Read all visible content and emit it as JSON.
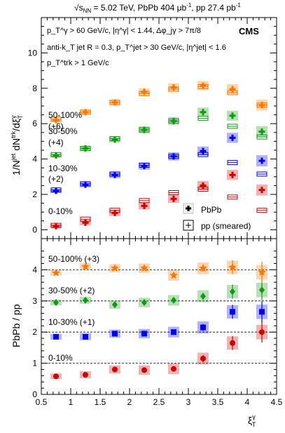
{
  "header": {
    "sqrt_s": "√s",
    "sqrt_s_sub": "NN",
    "rest": " = 5.02 TeV, PbPb 404 μb",
    "sup1": "-1",
    "mid": ", pp 27.4 pb",
    "sup2": "-1"
  },
  "cuts": {
    "line1": "p_T^γ > 60 GeV/c, |η^γ| < 1.44, Δφ_jγ > 7π/8",
    "line2": "anti-k_T jet R = 0.3, p_T^jet > 30 GeV/c, |η^jet| < 1.6",
    "line3": "p_T^trk > 1 GeV/c"
  },
  "cms_label": "CMS",
  "legend": {
    "pbpb": "PbPb",
    "pp": "pp (smeared)"
  },
  "colors": {
    "0-10%": "#cc0000",
    "10-30%": "#0000ee",
    "30-50%": "#119911",
    "50-100%": "#ff7700",
    "pp_box_alpha": 0.35
  },
  "chart_data": [
    {
      "type": "scatter",
      "title": "",
      "xlabel": "ξ_T^γ",
      "ylabel": "1/N^jet dN^trk/dξ_T^γ",
      "xlim": [
        0.5,
        4.5
      ],
      "ylim": [
        -0.5,
        12
      ],
      "yticks": [
        0,
        2,
        4,
        6,
        8,
        10
      ],
      "x": [
        0.75,
        1.25,
        1.75,
        2.25,
        2.75,
        3.25,
        3.75,
        4.25
      ],
      "series": [
        {
          "name": "0-10%",
          "label": "0-10%",
          "offset": "",
          "pbpb": [
            0.2,
            0.4,
            0.95,
            1.35,
            1.75,
            2.5,
            3.1,
            2.25
          ],
          "pp": [
            0.25,
            0.6,
            1.1,
            1.65,
            2.1,
            2.3,
            1.85,
            1.1
          ]
        },
        {
          "name": "10-30%",
          "label": "10-30%",
          "offset": "(+2)",
          "pbpb": [
            2.2,
            2.55,
            3.1,
            3.6,
            4.15,
            4.45,
            5.2,
            3.9
          ],
          "pp": [
            2.25,
            2.6,
            3.15,
            3.65,
            4.15,
            4.25,
            3.8,
            3.15
          ]
        },
        {
          "name": "30-50%",
          "label": "30-50%",
          "offset": "(+4)",
          "pbpb": [
            4.2,
            4.6,
            5.1,
            5.65,
            6.15,
            6.65,
            6.45,
            5.55
          ],
          "pp": [
            4.25,
            4.6,
            5.15,
            5.65,
            6.15,
            6.3,
            5.85,
            5.25
          ]
        },
        {
          "name": "50-100%",
          "label": "50-100%",
          "offset": "(+6)",
          "pbpb": [
            6.2,
            6.65,
            7.2,
            7.8,
            8.05,
            8.15,
            7.95,
            7.05
          ],
          "pp": [
            6.25,
            6.65,
            7.2,
            7.7,
            7.95,
            8.1,
            7.75,
            7.05
          ]
        }
      ]
    },
    {
      "type": "scatter",
      "title": "",
      "xlabel": "ξ_T^γ",
      "ylabel": "PbPb / pp",
      "xlim": [
        0.5,
        4.5
      ],
      "ylim": [
        0,
        5
      ],
      "yticks": [
        0,
        1,
        2,
        3,
        4
      ],
      "xticks": [
        0.5,
        1,
        1.5,
        2,
        2.5,
        3,
        3.5,
        4,
        4.5
      ],
      "x": [
        0.75,
        1.25,
        1.75,
        2.25,
        2.75,
        3.25,
        3.75,
        4.25
      ],
      "series": [
        {
          "name": "0-10%",
          "label": "0-10%",
          "offset": "",
          "marker": "circle",
          "values": [
            0.58,
            0.63,
            0.8,
            0.78,
            0.82,
            1.15,
            1.65,
            2.0
          ]
        },
        {
          "name": "10-30%",
          "label": "10-30% (+1)",
          "offset": "(+1)",
          "marker": "square",
          "values": [
            1.85,
            1.85,
            1.95,
            1.95,
            2.0,
            2.15,
            2.65,
            2.65
          ]
        },
        {
          "name": "30-50%",
          "label": "30-50% (+2)",
          "offset": "(+2)",
          "marker": "diamond",
          "values": [
            2.95,
            3.02,
            2.88,
            2.95,
            3.02,
            3.15,
            3.3,
            3.35
          ]
        },
        {
          "name": "50-100%",
          "label": "50-100% (+3)",
          "offset": "(+3)",
          "marker": "star",
          "values": [
            3.9,
            4.1,
            4.05,
            4.05,
            3.82,
            4.05,
            4.08,
            3.92
          ]
        }
      ],
      "reference_lines": [
        1,
        2,
        3,
        4
      ]
    }
  ]
}
